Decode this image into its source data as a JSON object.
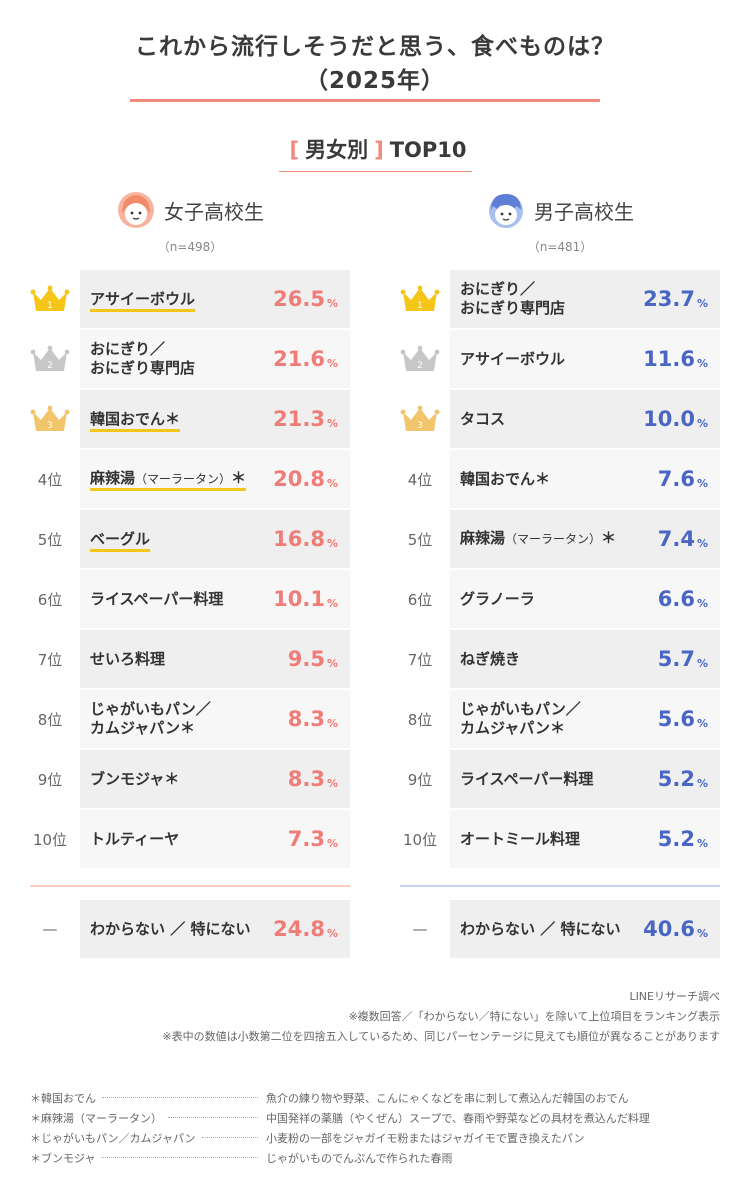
{
  "title": {
    "line1": "これから流行しそうだと思う、食べものは？",
    "line2": "（2025年）"
  },
  "subtitle": {
    "open": "[",
    "text": "男女別",
    "close": "]",
    "rest": "TOP10"
  },
  "colors": {
    "girls": "#f07c78",
    "boys": "#4a66c4",
    "gold": "#f5c518",
    "silver": "#c7c7c7",
    "bronze": "#f2c46b"
  },
  "chart_data": [
    {
      "type": "table",
      "group": "女子高校生",
      "n": "（n=498）",
      "unit": "%",
      "rows": [
        {
          "rank": "1",
          "label": "アサイーボウル",
          "value": "26.5",
          "highlight": true
        },
        {
          "rank": "2",
          "label": "おにぎり／\nおにぎり専門店",
          "value": "21.6",
          "highlight": false
        },
        {
          "rank": "3",
          "label": "韓国おでん＊",
          "value": "21.3",
          "highlight": true
        },
        {
          "rank": "4位",
          "label": "麻辣湯（マーラータン）＊",
          "value": "20.8",
          "highlight": true
        },
        {
          "rank": "5位",
          "label": "ベーグル",
          "value": "16.8",
          "highlight": true
        },
        {
          "rank": "6位",
          "label": "ライスペーパー料理",
          "value": "10.1",
          "highlight": false
        },
        {
          "rank": "7位",
          "label": "せいろ料理",
          "value": "9.5",
          "highlight": false
        },
        {
          "rank": "8位",
          "label": "じゃがいもパン／\nカムジャパン＊",
          "value": "8.3",
          "highlight": false
        },
        {
          "rank": "9位",
          "label": "ブンモジャ＊",
          "value": "8.3",
          "highlight": false
        },
        {
          "rank": "10位",
          "label": "トルティーヤ",
          "value": "7.3",
          "highlight": false
        }
      ],
      "other": {
        "rank": "—",
        "label": "わからない ／ 特にない",
        "value": "24.8"
      }
    },
    {
      "type": "table",
      "group": "男子高校生",
      "n": "（n=481）",
      "unit": "%",
      "rows": [
        {
          "rank": "1",
          "label": "おにぎり／\nおにぎり専門店",
          "value": "23.7",
          "highlight": false
        },
        {
          "rank": "2",
          "label": "アサイーボウル",
          "value": "11.6",
          "highlight": false
        },
        {
          "rank": "3",
          "label": "タコス",
          "value": "10.0",
          "highlight": false
        },
        {
          "rank": "4位",
          "label": "韓国おでん＊",
          "value": "7.6",
          "highlight": false
        },
        {
          "rank": "5位",
          "label": "麻辣湯（マーラータン）＊",
          "value": "7.4",
          "highlight": false
        },
        {
          "rank": "6位",
          "label": "グラノーラ",
          "value": "6.6",
          "highlight": false
        },
        {
          "rank": "7位",
          "label": "ねぎ焼き",
          "value": "5.7",
          "highlight": false
        },
        {
          "rank": "8位",
          "label": "じゃがいもパン／\nカムジャパン＊",
          "value": "5.6",
          "highlight": false
        },
        {
          "rank": "9位",
          "label": "ライスペーパー料理",
          "value": "5.2",
          "highlight": false
        },
        {
          "rank": "10位",
          "label": "オートミール料理",
          "value": "5.2",
          "highlight": false
        }
      ],
      "other": {
        "rank": "—",
        "label": "わからない ／ 特にない",
        "value": "40.6"
      }
    }
  ],
  "notes": {
    "source": "LINEリサーチ調べ",
    "note1": "※複数回答／「わからない／特にない」を除いて上位項目をランキング表示",
    "note2": "※表中の数値は小数第二位を四捨五入しているため、同じパーセンテージに見えても順位が異なることがあります"
  },
  "footnotes": [
    {
      "term": "＊韓国おでん",
      "desc": "魚介の練り物や野菜、こんにゃくなどを串に刺して煮込んだ韓国のおでん"
    },
    {
      "term": "＊麻辣湯（マーラータン）",
      "desc": "中国発祥の薬膳（やくぜん）スープで、春雨や野菜などの具材を煮込んだ料理"
    },
    {
      "term": "＊じゃがいもパン／カムジャパン",
      "desc": "小麦粉の一部をジャガイモ粉またはジャガイモで置き換えたパン"
    },
    {
      "term": "＊ブンモジャ",
      "desc": "じゃがいものでんぷんで作られた春雨"
    }
  ]
}
